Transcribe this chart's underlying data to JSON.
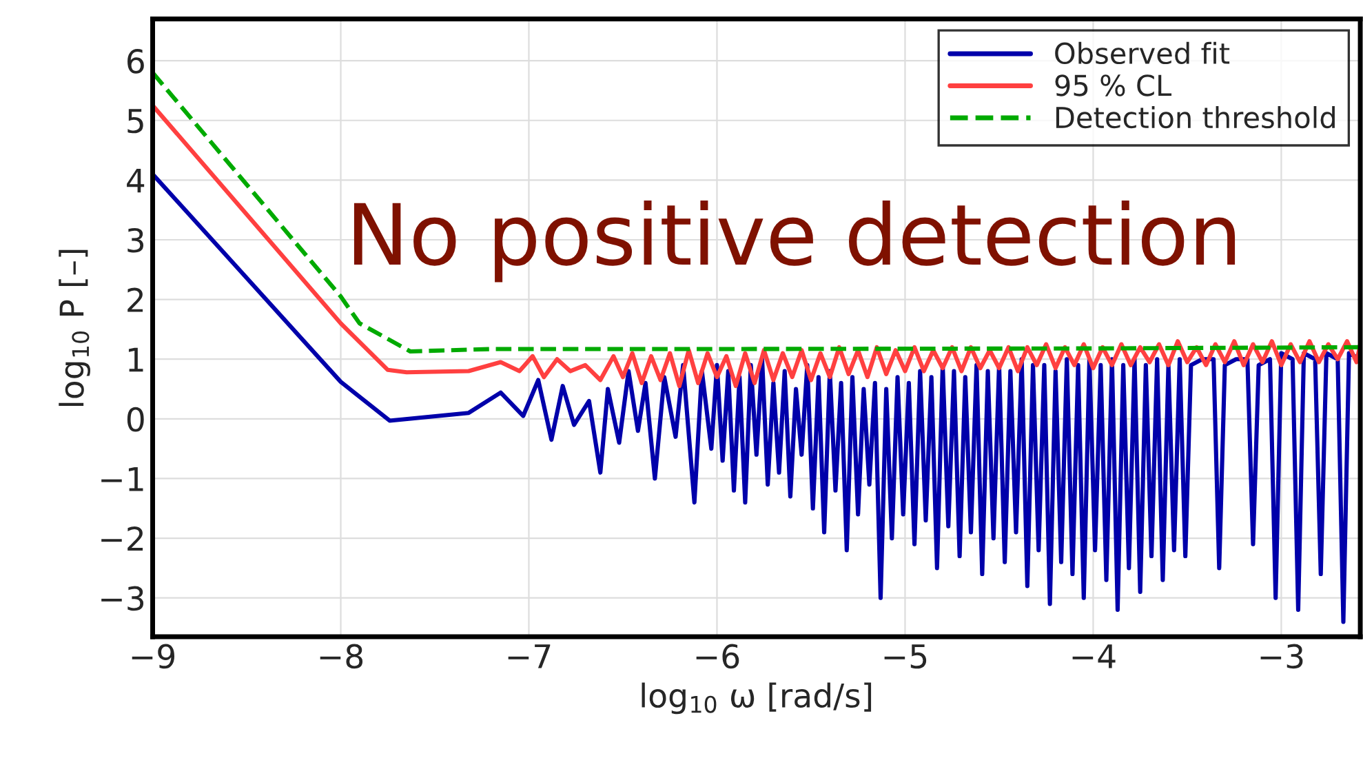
{
  "chart_data": {
    "type": "line",
    "xlabel": "log$_{10}$ ω [rad/s]",
    "ylabel": "log$_{10}$ P [–]",
    "xlim": [
      -9,
      -2.58
    ],
    "xticks": [
      {
        "value": -9,
        "label": "−9"
      },
      {
        "value": -8,
        "label": "−8"
      },
      {
        "value": -7,
        "label": "−7"
      },
      {
        "value": -6,
        "label": "−6"
      },
      {
        "value": -5,
        "label": "−5"
      },
      {
        "value": -4,
        "label": "−4"
      },
      {
        "value": -3,
        "label": "−3"
      }
    ],
    "ylim": [
      -3.65,
      6.7
    ],
    "yticks": [
      {
        "value": -3,
        "label": "−3"
      },
      {
        "value": -2,
        "label": "−2"
      },
      {
        "value": -1,
        "label": "−1"
      },
      0,
      1,
      2,
      3,
      4,
      5,
      6
    ],
    "grid": true,
    "legend": "top right",
    "annotations": [
      "No positive detection"
    ],
    "series": [
      {
        "name": "Observed fit",
        "color": "#0000aa",
        "line_style": "solid",
        "x": [
          -9,
          -8,
          -7.74,
          -7.32,
          -7.15,
          -7.03,
          -6.95,
          -6.88,
          -6.82,
          -6.76,
          -6.68,
          -6.62,
          -6.58,
          -6.52,
          -6.47,
          -6.42,
          -6.38,
          -6.33,
          -6.28,
          -6.22,
          -6.18,
          -6.12,
          -6.08,
          -6.03,
          -6.0,
          -5.97,
          -5.94,
          -5.91,
          -5.88,
          -5.85,
          -5.82,
          -5.79,
          -5.76,
          -5.73,
          -5.7,
          -5.67,
          -5.64,
          -5.61,
          -5.58,
          -5.55,
          -5.52,
          -5.49,
          -5.46,
          -5.43,
          -5.4,
          -5.37,
          -5.34,
          -5.31,
          -5.28,
          -5.25,
          -5.22,
          -5.19,
          -5.16,
          -5.13,
          -5.1,
          -5.07,
          -5.04,
          -5.01,
          -4.98,
          -4.95,
          -4.92,
          -4.89,
          -4.86,
          -4.83,
          -4.8,
          -4.77,
          -4.74,
          -4.71,
          -4.68,
          -4.65,
          -4.62,
          -4.59,
          -4.56,
          -4.53,
          -4.5,
          -4.47,
          -4.44,
          -4.41,
          -4.38,
          -4.35,
          -4.32,
          -4.29,
          -4.26,
          -4.23,
          -4.2,
          -4.17,
          -4.14,
          -4.11,
          -4.08,
          -4.05,
          -4.02,
          -3.99,
          -3.96,
          -3.93,
          -3.9,
          -3.87,
          -3.84,
          -3.81,
          -3.78,
          -3.75,
          -3.72,
          -3.69,
          -3.66,
          -3.63,
          -3.6,
          -3.57,
          -3.54,
          -3.51,
          -3.48,
          -3.45,
          -3.42,
          -3.39,
          -3.36,
          -3.33,
          -3.3,
          -3.27,
          -3.24,
          -3.21,
          -3.18,
          -3.15,
          -3.12,
          -3.09,
          -3.06,
          -3.03,
          -3.0,
          -2.97,
          -2.94,
          -2.91,
          -2.88,
          -2.85,
          -2.82,
          -2.79,
          -2.76,
          -2.73,
          -2.7,
          -2.67,
          -2.64,
          -2.61,
          -2.58
        ],
        "values": [
          4.1,
          0.62,
          -0.03,
          0.1,
          0.44,
          0.05,
          0.65,
          -0.35,
          0.55,
          -0.1,
          0.3,
          -0.9,
          0.5,
          -0.4,
          0.8,
          -0.2,
          0.6,
          -1.0,
          0.7,
          -0.3,
          0.9,
          -1.4,
          0.8,
          -0.5,
          0.9,
          -0.7,
          0.8,
          -1.2,
          0.7,
          -1.4,
          0.9,
          -0.6,
          1.0,
          -1.1,
          0.6,
          -0.9,
          0.8,
          -1.3,
          0.5,
          -0.6,
          0.9,
          -1.5,
          0.7,
          -1.9,
          0.8,
          -1.2,
          0.6,
          -2.2,
          0.7,
          -1.6,
          0.5,
          -1.1,
          0.6,
          -3.0,
          0.5,
          -2.0,
          0.7,
          -1.6,
          0.6,
          -2.1,
          0.8,
          -1.7,
          0.7,
          -2.5,
          0.9,
          -1.8,
          0.8,
          -2.3,
          0.7,
          -1.9,
          0.9,
          -2.6,
          0.8,
          -2.0,
          0.9,
          -2.4,
          0.8,
          -1.9,
          1.0,
          -2.8,
          0.9,
          -2.2,
          0.9,
          -3.1,
          0.8,
          -2.4,
          1.0,
          -2.6,
          0.9,
          -3.0,
          1.0,
          -2.2,
          0.9,
          -2.7,
          1.0,
          -3.2,
          0.9,
          -2.5,
          1.0,
          -2.9,
          0.9,
          -2.3,
          1.0,
          -2.7,
          0.9,
          -2.2,
          1.0,
          -2.3,
          0.9,
          null,
          1.0,
          null,
          1.0,
          -2.5,
          0.9,
          null,
          1.0,
          null,
          1.0,
          -2.1,
          0.9,
          null,
          1.0,
          -3.0,
          1.1,
          null,
          1.0,
          -3.2,
          1.1,
          null,
          1.0,
          -2.6,
          1.1,
          null,
          1.0,
          -3.4,
          1.1,
          null,
          1.0
        ]
      },
      {
        "name": "95 % CL",
        "color": "#ff4040",
        "line_style": "solid",
        "x": [
          -9,
          -8,
          -7.75,
          -7.65,
          -7.32,
          -7.15,
          -7.05,
          -6.98,
          -6.92,
          -6.85,
          -6.78,
          -6.7,
          -6.62,
          -6.55,
          -6.5,
          -6.45,
          -6.4,
          -6.35,
          -6.3,
          -6.25,
          -6.2,
          -6.15,
          -6.1,
          -6.05,
          -6.0,
          -5.95,
          -5.9,
          -5.85,
          -5.8,
          -5.75,
          -5.7,
          -5.65,
          -5.6,
          -5.55,
          -5.5,
          -5.45,
          -5.4,
          -5.35,
          -5.3,
          -5.25,
          -5.2,
          -5.15,
          -5.1,
          -5.05,
          -5.0,
          -4.95,
          -4.9,
          -4.85,
          -4.8,
          -4.75,
          -4.7,
          -4.65,
          -4.6,
          -4.55,
          -4.5,
          -4.45,
          -4.4,
          -4.35,
          -4.3,
          -4.25,
          -4.2,
          -4.15,
          -4.1,
          -4.05,
          -4.0,
          -3.95,
          -3.9,
          -3.85,
          -3.8,
          -3.75,
          -3.7,
          -3.65,
          -3.6,
          -3.55,
          -3.5,
          -3.45,
          -3.4,
          -3.35,
          -3.3,
          -3.25,
          -3.2,
          -3.15,
          -3.1,
          -3.05,
          -3.0,
          -2.95,
          -2.9,
          -2.85,
          -2.8,
          -2.75,
          -2.7,
          -2.65,
          -2.6,
          -2.58
        ],
        "values": [
          5.25,
          1.6,
          0.82,
          0.78,
          0.8,
          0.95,
          0.8,
          1.05,
          0.7,
          1.0,
          0.8,
          0.9,
          0.65,
          1.05,
          0.7,
          1.1,
          0.6,
          1.05,
          0.65,
          1.1,
          0.55,
          1.15,
          0.6,
          1.1,
          0.7,
          1.05,
          0.55,
          1.1,
          0.6,
          1.15,
          0.65,
          1.1,
          0.7,
          1.15,
          0.65,
          1.1,
          0.7,
          1.2,
          0.75,
          1.15,
          0.7,
          1.2,
          0.75,
          1.15,
          0.8,
          1.2,
          0.8,
          1.15,
          0.85,
          1.2,
          0.8,
          1.2,
          0.85,
          1.15,
          0.85,
          1.2,
          0.8,
          1.2,
          0.9,
          1.25,
          0.85,
          1.2,
          0.9,
          1.25,
          0.85,
          1.2,
          0.9,
          1.25,
          0.9,
          1.2,
          0.95,
          1.25,
          0.9,
          1.3,
          0.95,
          1.2,
          0.9,
          1.25,
          0.95,
          1.3,
          0.9,
          1.25,
          0.95,
          1.3,
          0.9,
          1.25,
          0.95,
          1.3,
          0.95,
          1.25,
          1.0,
          1.3,
          0.95,
          1.25
        ]
      },
      {
        "name": "Detection threshold",
        "color": "#00aa00",
        "line_style": "dashed",
        "x": [
          -9,
          -8,
          -7.9,
          -7.63,
          -7.2,
          -6.0,
          -4.0,
          -2.58
        ],
        "values": [
          5.8,
          2.05,
          1.6,
          1.13,
          1.17,
          1.17,
          1.18,
          1.2
        ]
      }
    ]
  }
}
